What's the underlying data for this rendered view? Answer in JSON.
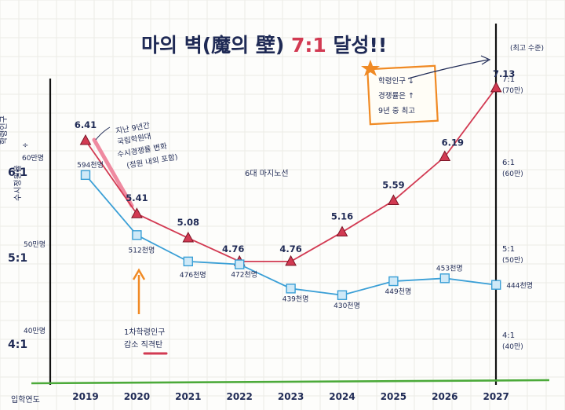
{
  "title_parts": {
    "a": "마의 벽(",
    "b": "魔",
    "c": "의 ",
    "d": "壁",
    "e": ") ",
    "f": "7:1",
    "g": " 달성!!"
  },
  "colors": {
    "red": "#d23a52",
    "blue": "#3a9fd6",
    "navy": "#1f2a55",
    "orange": "#f08a24",
    "green": "#4caa3a",
    "pink": "#ef8aa0"
  },
  "left_axis": {
    "caption": [
      "학령인구",
      "÷",
      "수시정원율"
    ],
    "ticks": [
      {
        "label": "6:1",
        "sub": "60만명",
        "value": 6
      },
      {
        "label": "5:1",
        "sub": "50만명",
        "value": 5
      },
      {
        "label": "4:1",
        "sub": "40만명",
        "value": 4
      }
    ]
  },
  "right_axis": {
    "caption": "(최고 수준)",
    "ticks": [
      {
        "label": "7:1",
        "sub": "(70만)",
        "value": 7
      },
      {
        "label": "6:1",
        "sub": "(60만)",
        "value": 6
      },
      {
        "label": "5:1",
        "sub": "(50만)",
        "value": 5
      },
      {
        "label": "4:1",
        "sub": "(40만)",
        "value": 4
      }
    ]
  },
  "x_axis_label": "입학연도",
  "chart_data": {
    "type": "line",
    "categories": [
      "2019",
      "2020",
      "2021",
      "2022",
      "2023",
      "2024",
      "2025",
      "2026",
      "2027"
    ],
    "ylim": [
      3.0,
      7.45
    ],
    "series": [
      {
        "name": "수시경쟁률",
        "color": "#d23a52",
        "marker": "triangle",
        "values": [
          6.41,
          5.41,
          5.08,
          4.76,
          4.76,
          5.16,
          5.59,
          6.19,
          7.13
        ],
        "labels": [
          "6.41",
          "5.41",
          "5.08",
          "4.76",
          "4.76",
          "5.16",
          "5.59",
          "6.19",
          "7.13"
        ]
      },
      {
        "name": "학령인구",
        "color": "#3a9fd6",
        "marker": "square",
        "values": [
          5.94,
          5.12,
          4.76,
          4.72,
          4.39,
          4.3,
          4.49,
          4.53,
          4.44
        ],
        "labels": [
          "594천명",
          "512천명",
          "476천명",
          "472천명",
          "439천명",
          "430천명",
          "449천명",
          "453천명",
          "444천명"
        ]
      }
    ]
  },
  "annotations": {
    "note_2019": [
      "지난 9년간",
      "국립학원대",
      "수시경쟁률 변화",
      "(정원 내외 포함)"
    ],
    "center_note": "6대 마지노선",
    "arrow_note": [
      "1차학령인구",
      "감소 직격탄"
    ],
    "callout_box": [
      "학령인구 ↓",
      "경쟁률은 ↑",
      "9년 중 최고"
    ]
  }
}
